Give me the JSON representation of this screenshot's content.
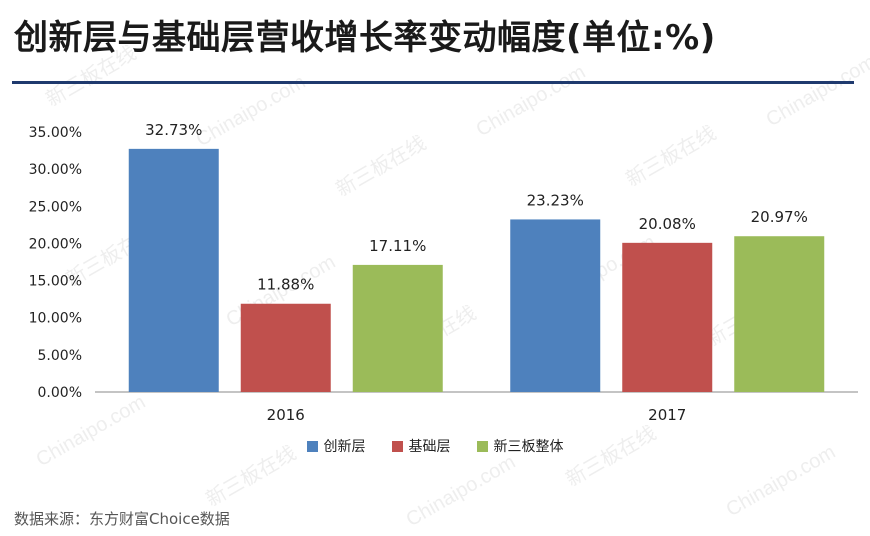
{
  "title": "创新层与基础层营收增长率变动幅度(单位:%)",
  "source": "数据来源：东方财富Choice数据",
  "watermark": {
    "cn": "新三板在线",
    "en": "Chinaipo.com"
  },
  "colors": {
    "innovation": "#4e81bd",
    "basic": "#c0504d",
    "overall": "#9bbb59",
    "rule": "#1f3a6e"
  },
  "chart_data": {
    "type": "bar",
    "categories": [
      "2016",
      "2017"
    ],
    "series": [
      {
        "name": "创新层",
        "values": [
          32.73,
          23.23
        ],
        "labels": [
          "32.73%",
          "23.23%"
        ]
      },
      {
        "name": "基础层",
        "values": [
          11.88,
          20.08
        ],
        "labels": [
          "11.88%",
          "20.08%"
        ]
      },
      {
        "name": "新三板整体",
        "values": [
          17.11,
          20.97
        ],
        "labels": [
          "17.11%",
          "20.97%"
        ]
      }
    ],
    "yticks": [
      "0.00%",
      "5.00%",
      "10.00%",
      "15.00%",
      "20.00%",
      "25.00%",
      "30.00%",
      "35.00%"
    ],
    "ylim": [
      0,
      35
    ],
    "grid": false,
    "legend_position": "bottom"
  }
}
